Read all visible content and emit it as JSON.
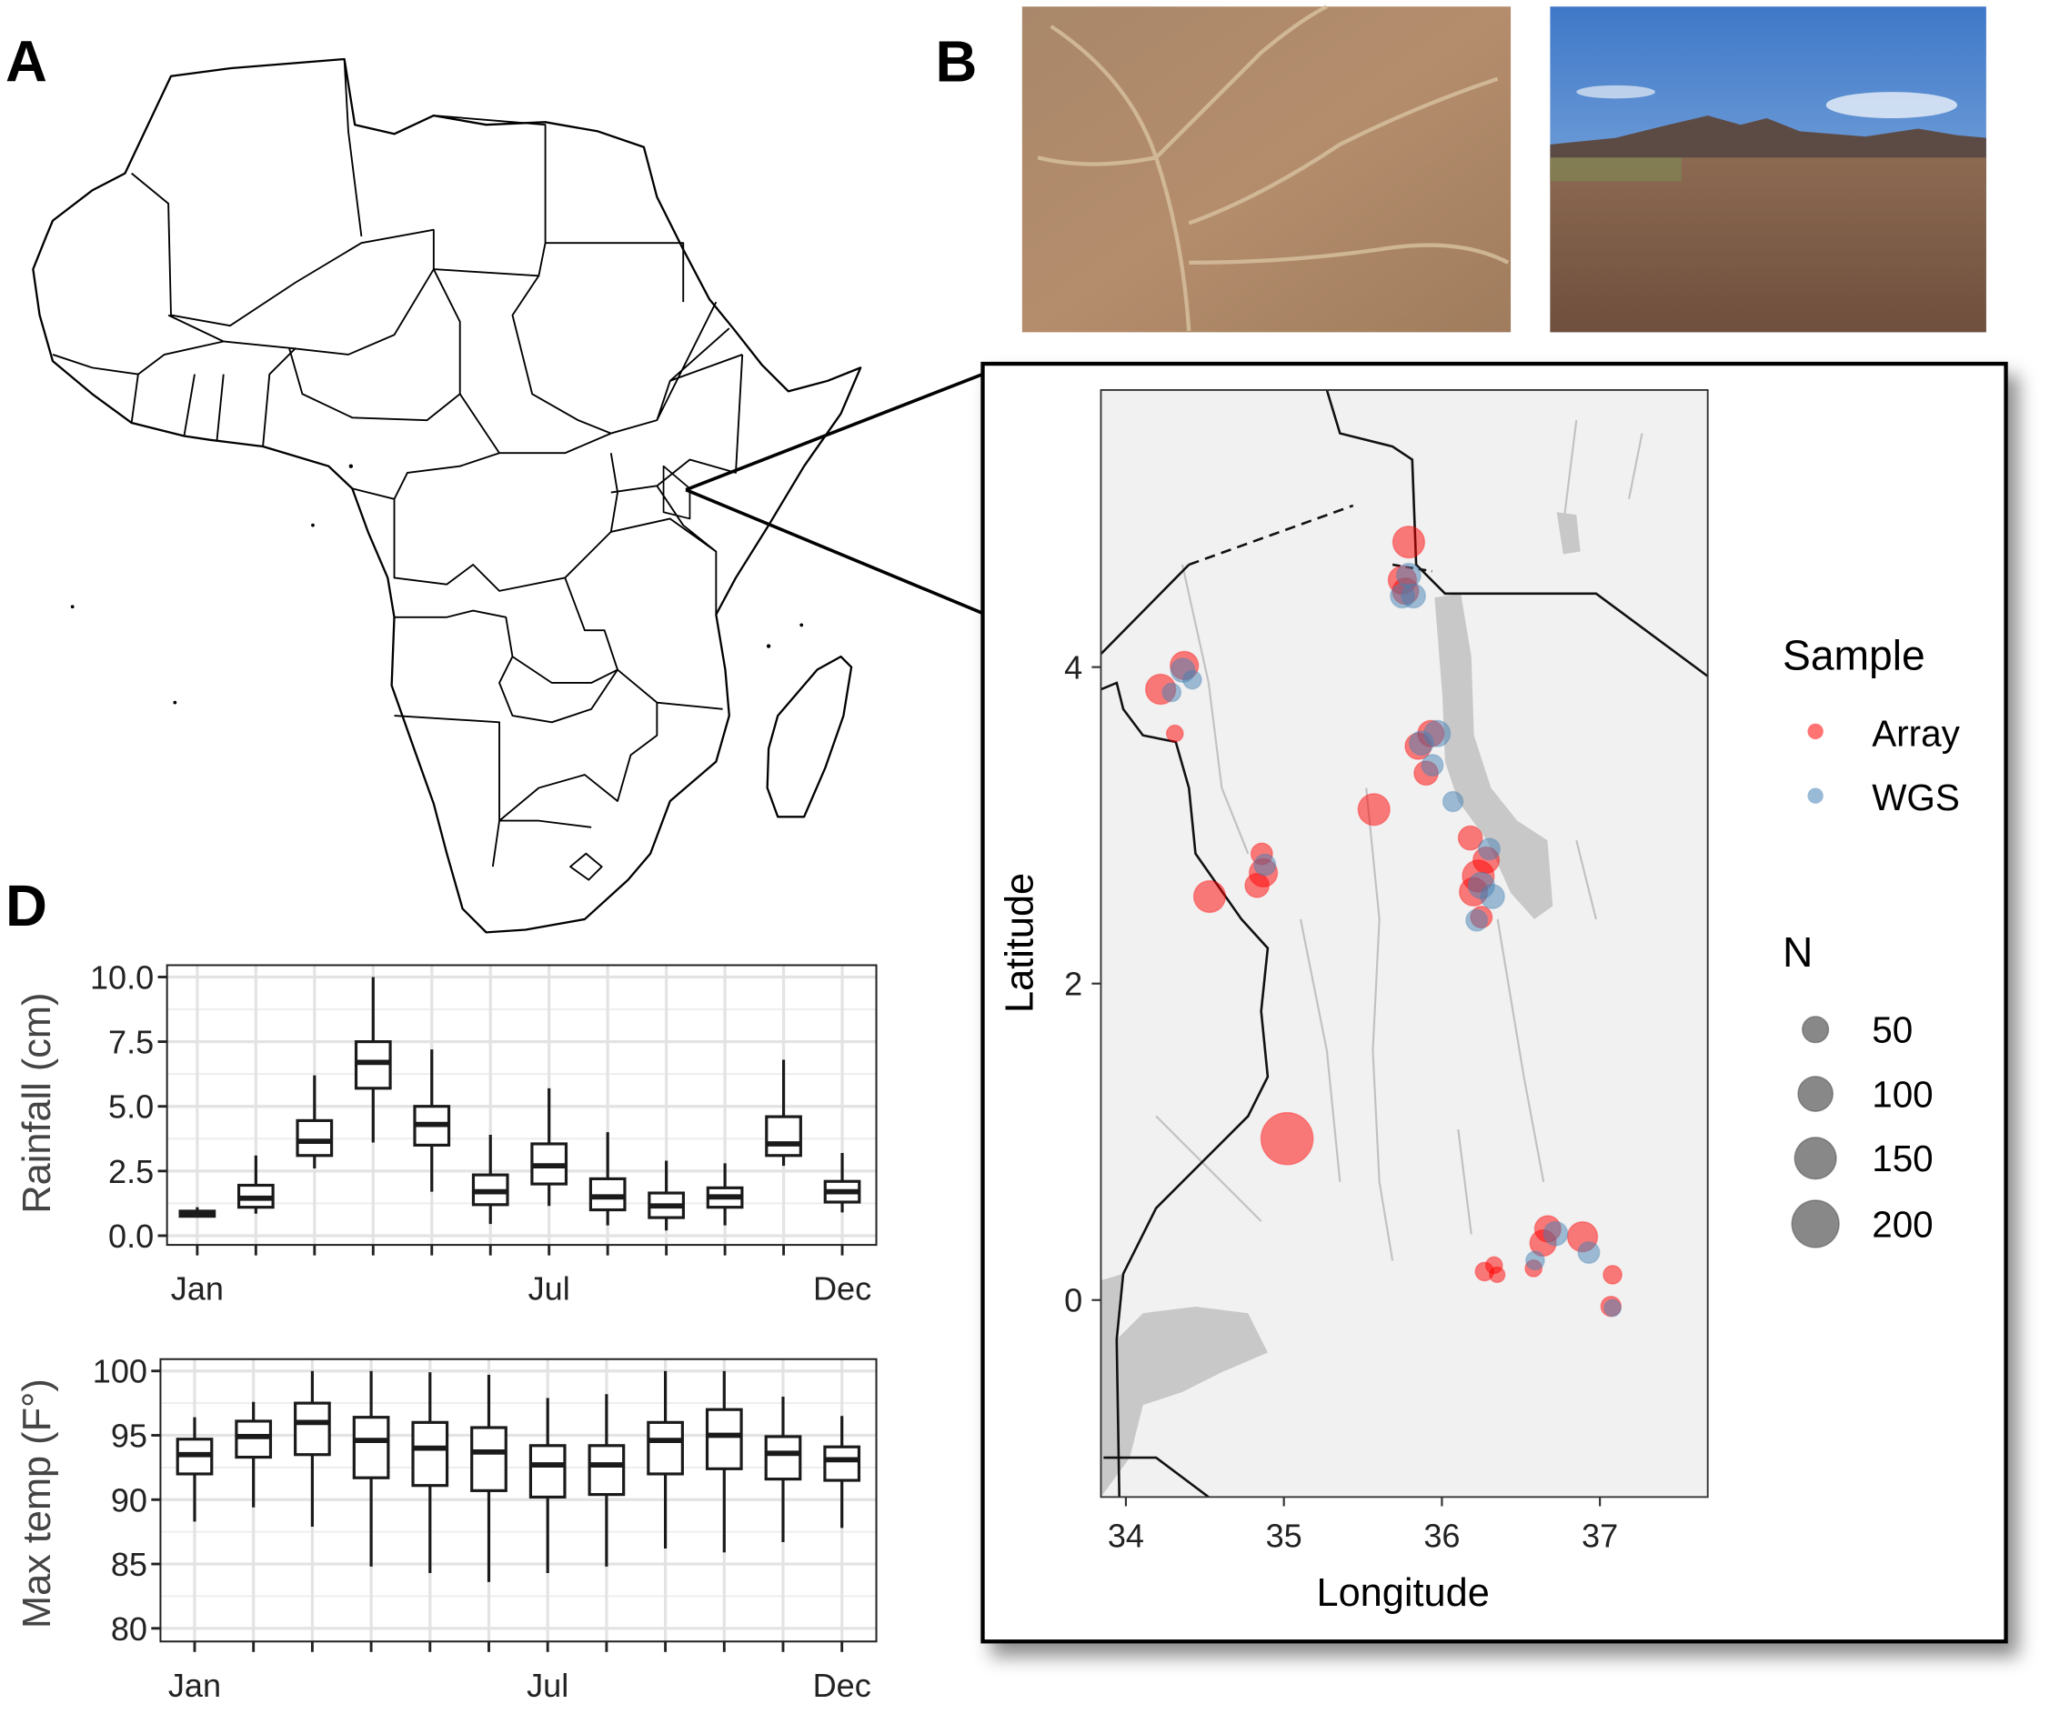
{
  "panel_labels": {
    "a": "A",
    "b": "B",
    "d": "D"
  },
  "colors": {
    "array": "#ff0000",
    "wgs": "#4682b4",
    "lake": "#c8c8c8",
    "terrain": "#f1f1f1"
  },
  "chart_data": [
    {
      "type": "scatter",
      "xlabel": "Longitude",
      "ylabel": "Latitude",
      "xlim": [
        33.84,
        37.68
      ],
      "ylim": [
        -1.25,
        5.74
      ],
      "xticks": [
        34,
        35,
        36,
        37
      ],
      "yticks": [
        0,
        2,
        4
      ],
      "legend_color": {
        "title": "Sample",
        "entries": [
          "Array",
          "WGS"
        ]
      },
      "legend_size": {
        "title": "N",
        "entries": [
          50,
          100,
          150,
          200
        ]
      },
      "legend_position": "right",
      "series": [
        {
          "name": "Array",
          "points": [
            {
              "lon": 35.79,
              "lat": 4.79,
              "n": 80
            },
            {
              "lon": 35.75,
              "lat": 4.55,
              "n": 60
            },
            {
              "lon": 35.77,
              "lat": 4.48,
              "n": 50
            },
            {
              "lon": 34.37,
              "lat": 4.01,
              "n": 60
            },
            {
              "lon": 34.22,
              "lat": 3.86,
              "n": 70
            },
            {
              "lon": 34.31,
              "lat": 3.58,
              "n": 15
            },
            {
              "lon": 35.85,
              "lat": 3.5,
              "n": 50
            },
            {
              "lon": 35.93,
              "lat": 3.58,
              "n": 50
            },
            {
              "lon": 35.9,
              "lat": 3.33,
              "n": 40
            },
            {
              "lon": 35.57,
              "lat": 3.1,
              "n": 80
            },
            {
              "lon": 34.53,
              "lat": 2.55,
              "n": 80
            },
            {
              "lon": 34.86,
              "lat": 2.82,
              "n": 30
            },
            {
              "lon": 34.87,
              "lat": 2.7,
              "n": 60
            },
            {
              "lon": 34.83,
              "lat": 2.62,
              "n": 40
            },
            {
              "lon": 35.02,
              "lat": 1.02,
              "n": 250
            },
            {
              "lon": 36.2,
              "lat": 2.58,
              "n": 60
            },
            {
              "lon": 36.23,
              "lat": 2.68,
              "n": 80
            },
            {
              "lon": 36.28,
              "lat": 2.78,
              "n": 50
            },
            {
              "lon": 36.18,
              "lat": 2.92,
              "n": 40
            },
            {
              "lon": 36.25,
              "lat": 2.42,
              "n": 30
            },
            {
              "lon": 36.27,
              "lat": 0.18,
              "n": 20
            },
            {
              "lon": 36.33,
              "lat": 0.22,
              "n": 15
            },
            {
              "lon": 36.35,
              "lat": 0.16,
              "n": 12
            },
            {
              "lon": 36.58,
              "lat": 0.2,
              "n": 15
            },
            {
              "lon": 36.64,
              "lat": 0.36,
              "n": 50
            },
            {
              "lon": 36.67,
              "lat": 0.45,
              "n": 50
            },
            {
              "lon": 36.89,
              "lat": 0.4,
              "n": 70
            },
            {
              "lon": 37.08,
              "lat": 0.16,
              "n": 20
            },
            {
              "lon": 37.07,
              "lat": -0.04,
              "n": 25
            }
          ]
        },
        {
          "name": "WGS",
          "points": [
            {
              "lon": 35.79,
              "lat": 4.58,
              "n": 40
            },
            {
              "lon": 35.82,
              "lat": 4.45,
              "n": 40
            },
            {
              "lon": 35.75,
              "lat": 4.45,
              "n": 40
            },
            {
              "lon": 34.36,
              "lat": 3.98,
              "n": 40
            },
            {
              "lon": 34.42,
              "lat": 3.92,
              "n": 20
            },
            {
              "lon": 34.29,
              "lat": 3.84,
              "n": 20
            },
            {
              "lon": 35.97,
              "lat": 3.58,
              "n": 50
            },
            {
              "lon": 35.87,
              "lat": 3.52,
              "n": 40
            },
            {
              "lon": 35.94,
              "lat": 3.38,
              "n": 30
            },
            {
              "lon": 36.07,
              "lat": 3.15,
              "n": 25
            },
            {
              "lon": 34.88,
              "lat": 2.75,
              "n": 30
            },
            {
              "lon": 36.25,
              "lat": 2.62,
              "n": 50
            },
            {
              "lon": 36.3,
              "lat": 2.85,
              "n": 30
            },
            {
              "lon": 36.32,
              "lat": 2.55,
              "n": 40
            },
            {
              "lon": 36.22,
              "lat": 2.4,
              "n": 30
            },
            {
              "lon": 36.72,
              "lat": 0.42,
              "n": 40
            },
            {
              "lon": 36.93,
              "lat": 0.3,
              "n": 30
            },
            {
              "lon": 36.59,
              "lat": 0.25,
              "n": 20
            },
            {
              "lon": 37.08,
              "lat": -0.05,
              "n": 15
            }
          ]
        }
      ]
    },
    {
      "type": "boxplot",
      "ylabel": "Rainfall (cm)",
      "ylim": [
        0,
        10
      ],
      "yticks": [
        "0.0",
        "2.5",
        "5.0",
        "7.5",
        "10.0"
      ],
      "xtick_labels": {
        "0": "Jan",
        "6": "Jul",
        "11": "Dec"
      },
      "grid": true,
      "stats_order": [
        "min",
        "q1",
        "median",
        "q3",
        "max"
      ],
      "boxes": [
        [
          0.7,
          0.75,
          0.85,
          0.95,
          1.1
        ],
        [
          0.85,
          1.1,
          1.45,
          1.95,
          3.1
        ],
        [
          2.6,
          3.1,
          3.65,
          4.45,
          6.2
        ],
        [
          3.6,
          5.7,
          6.7,
          7.5,
          10.0
        ],
        [
          1.7,
          3.5,
          4.3,
          5.0,
          7.2
        ],
        [
          0.45,
          1.2,
          1.7,
          2.35,
          3.9
        ],
        [
          1.15,
          2.0,
          2.7,
          3.55,
          5.7
        ],
        [
          0.4,
          1.0,
          1.5,
          2.2,
          4.0
        ],
        [
          0.2,
          0.7,
          1.15,
          1.65,
          2.9
        ],
        [
          0.4,
          1.1,
          1.5,
          1.85,
          2.8
        ],
        [
          2.7,
          3.1,
          3.55,
          4.6,
          6.8
        ],
        [
          0.9,
          1.3,
          1.7,
          2.1,
          3.2
        ]
      ]
    },
    {
      "type": "boxplot",
      "ylabel": "Max temp (F°)",
      "ylim": [
        80,
        100
      ],
      "yticks": [
        "80",
        "85",
        "90",
        "95",
        "100"
      ],
      "xtick_labels": {
        "0": "Jan",
        "6": "Jul",
        "11": "Dec"
      },
      "grid": true,
      "stats_order": [
        "min",
        "q1",
        "median",
        "q3",
        "max"
      ],
      "boxes": [
        [
          88.3,
          92.0,
          93.5,
          94.7,
          96.4
        ],
        [
          89.4,
          93.3,
          94.9,
          96.1,
          97.6
        ],
        [
          87.9,
          93.5,
          96.0,
          97.5,
          100.0
        ],
        [
          84.8,
          91.7,
          94.6,
          96.4,
          100.0
        ],
        [
          84.3,
          91.1,
          94.0,
          96.0,
          99.9
        ],
        [
          83.6,
          90.7,
          93.7,
          95.6,
          99.7
        ],
        [
          84.3,
          90.2,
          92.7,
          94.2,
          97.9
        ],
        [
          84.8,
          90.4,
          92.7,
          94.2,
          98.2
        ],
        [
          86.2,
          92.0,
          94.6,
          96.0,
          100.0
        ],
        [
          85.9,
          92.4,
          95.0,
          97.0,
          100.0
        ],
        [
          86.7,
          91.6,
          93.6,
          94.9,
          98.0
        ],
        [
          87.8,
          91.5,
          93.1,
          94.1,
          96.5
        ]
      ]
    }
  ]
}
